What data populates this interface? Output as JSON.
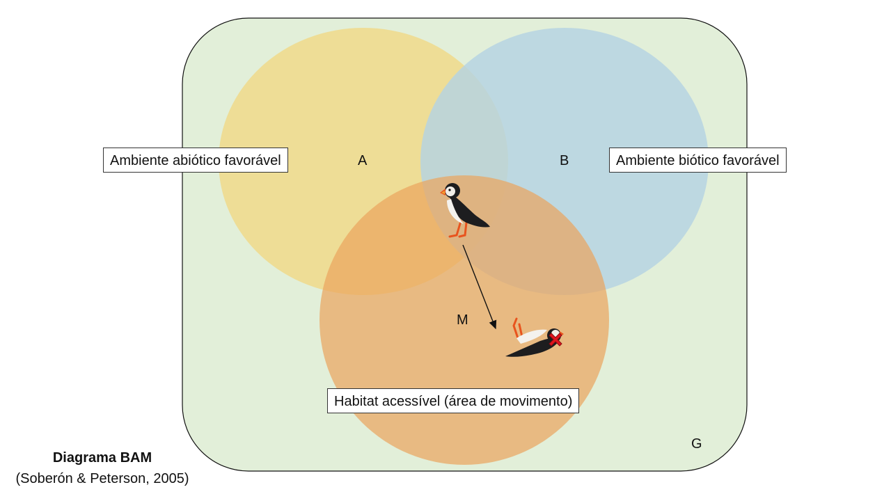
{
  "diagram": {
    "sets": {
      "A": {
        "letter": "A",
        "label": "Ambiente abiótico favorável",
        "color": "#f0d98a"
      },
      "B": {
        "letter": "B",
        "label": "Ambiente biótico favorável",
        "color": "#b5d3e3"
      },
      "M": {
        "letter": "M",
        "label": "Habitat acessível (área de movimento)",
        "color": "#eba45c"
      },
      "G": {
        "letter": "G",
        "color": "#e2efd9"
      }
    },
    "caption": {
      "title": "Diagrama BAM",
      "citation": "(Soberón & Peterson, 2005)"
    },
    "icons": {
      "alive_bird": "puffin-icon",
      "dead_bird": "dead-puffin-icon",
      "x_mark": "red-x-icon"
    }
  }
}
